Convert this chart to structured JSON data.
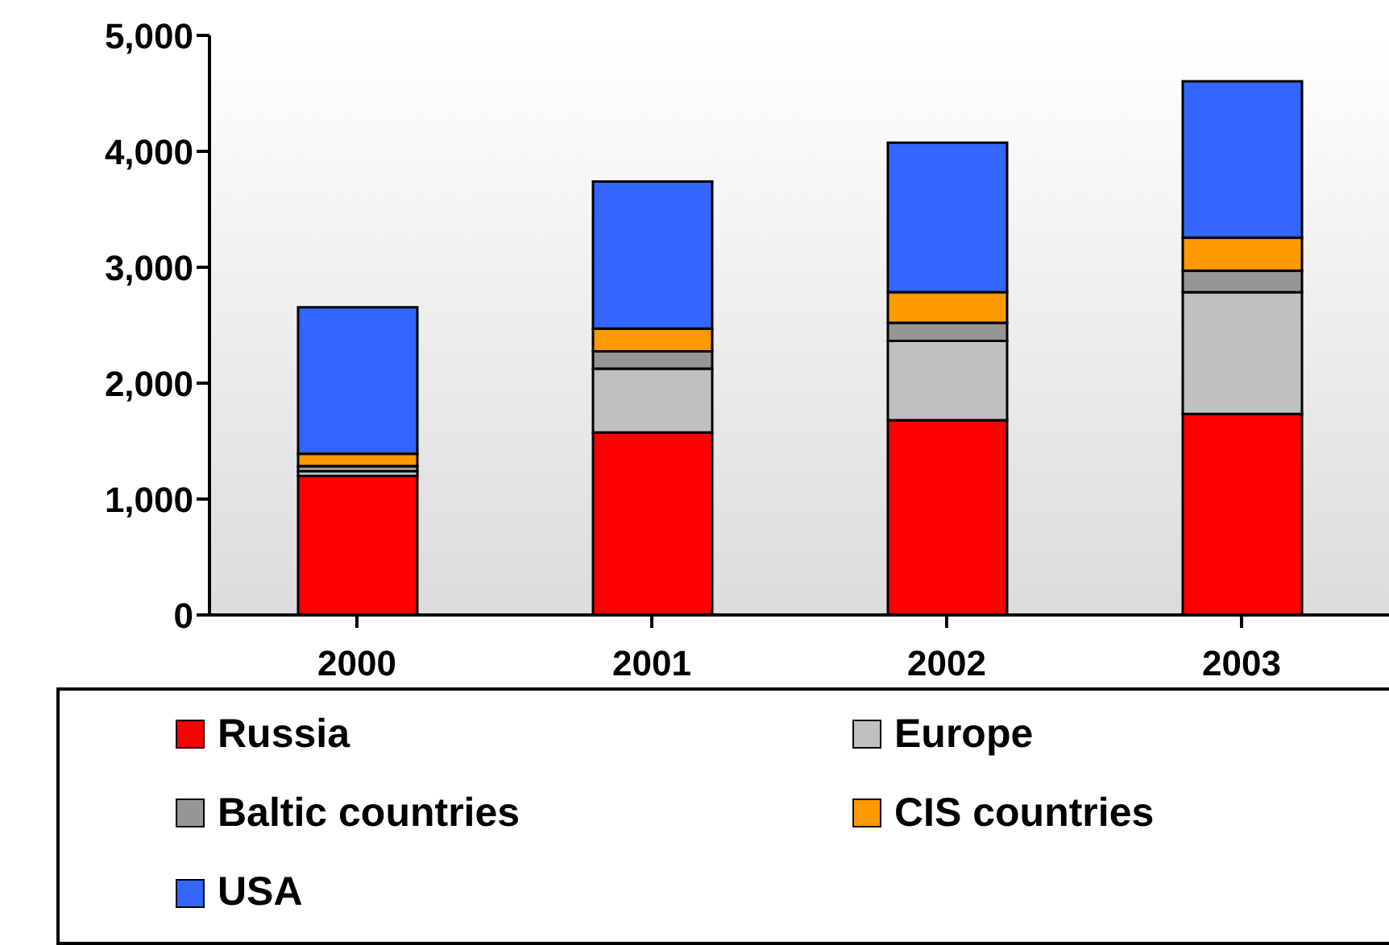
{
  "chart_data": {
    "type": "bar",
    "stacked": true,
    "categories": [
      "2000",
      "2001",
      "2002",
      "2003"
    ],
    "series": [
      {
        "name": "Russia",
        "color": "#ff0000",
        "values": [
          1200,
          1575,
          1680,
          1735
        ]
      },
      {
        "name": "Europe",
        "color": "#c0c0c0",
        "values": [
          40,
          550,
          685,
          1050
        ]
      },
      {
        "name": "Baltic countries",
        "color": "#969696",
        "values": [
          45,
          150,
          155,
          185
        ]
      },
      {
        "name": "CIS countries",
        "color": "#ff9900",
        "values": [
          105,
          195,
          265,
          285
        ]
      },
      {
        "name": "USA",
        "color": "#3366ff",
        "values": [
          1265,
          1270,
          1290,
          1350
        ]
      }
    ],
    "ylim": [
      0,
      5000
    ],
    "yticks": [
      {
        "value": 0,
        "label": "0"
      },
      {
        "value": 1000,
        "label": "1,000"
      },
      {
        "value": 2000,
        "label": "2,000"
      },
      {
        "value": 3000,
        "label": "3,000"
      },
      {
        "value": 4000,
        "label": "4,000"
      },
      {
        "value": 5000,
        "label": "5,000"
      }
    ],
    "grid": false,
    "legend": "bottom"
  }
}
